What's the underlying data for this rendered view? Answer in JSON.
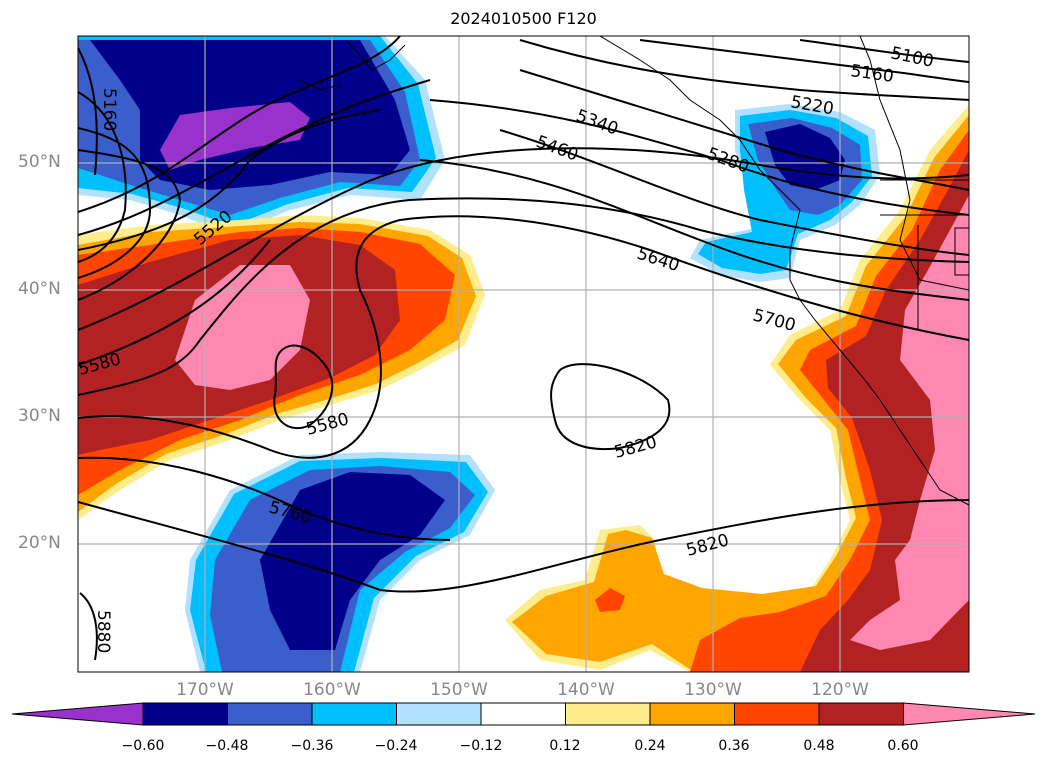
{
  "title": "2024010500 F120",
  "map": {
    "lat_labels": [
      "50°N",
      "40°N",
      "30°N",
      "20°N"
    ],
    "lon_labels": [
      "170°W",
      "160°W",
      "150°W",
      "140°W",
      "130°W",
      "120°W"
    ],
    "contour_labels": [
      "5100",
      "5160",
      "5220",
      "5280",
      "5340",
      "5460",
      "5520",
      "5580",
      "5640",
      "5700",
      "5760",
      "5820",
      "5880"
    ]
  },
  "colorbar": {
    "ticks": [
      "−0.60",
      "−0.48",
      "−0.36",
      "−0.24",
      "−0.12",
      "0.12",
      "0.24",
      "0.36",
      "0.48",
      "0.60"
    ],
    "colors": [
      "#9932cc",
      "#00008b",
      "#3a5fcd",
      "#00bfff",
      "#b0e2ff",
      "#ffffff",
      "#ffec8b",
      "#ffa500",
      "#ff4500",
      "#b22222",
      "#ff88b0"
    ]
  }
}
